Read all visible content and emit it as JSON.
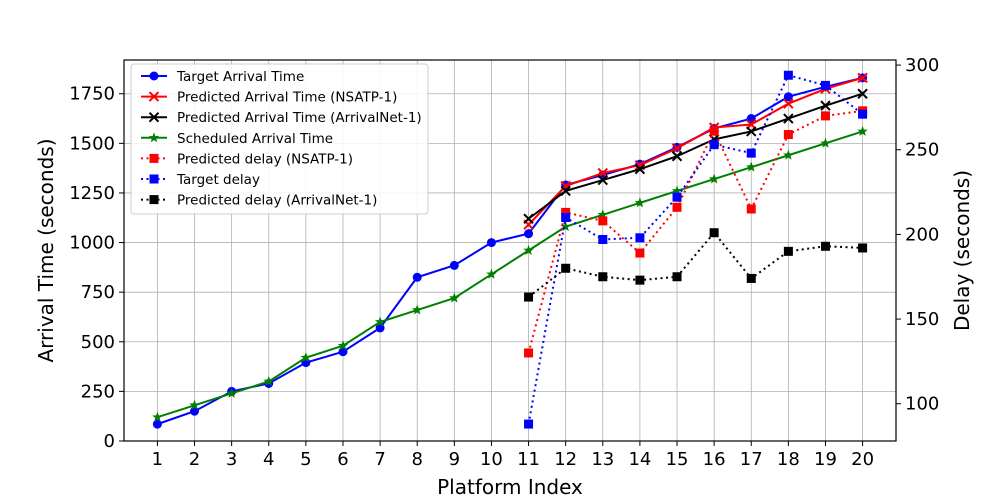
{
  "chart_data": {
    "type": "line",
    "title": "",
    "xlabel": "Platform Index",
    "ylabel_left": "Arrival Time (seconds)",
    "ylabel_right": "Delay (seconds)",
    "x": [
      1,
      2,
      3,
      4,
      5,
      6,
      7,
      8,
      9,
      10,
      11,
      12,
      13,
      14,
      15,
      16,
      17,
      18,
      19,
      20
    ],
    "xtick_labels": [
      "1",
      "2",
      "3",
      "4",
      "5",
      "6",
      "7",
      "8",
      "9",
      "10",
      "11",
      "12",
      "13",
      "14",
      "15",
      "16",
      "17",
      "18",
      "19",
      "20"
    ],
    "ylim_left": [
      0,
      1920
    ],
    "yticks_left": [
      0,
      250,
      500,
      750,
      1000,
      1250,
      1500,
      1750
    ],
    "yticks_left_labels": [
      "0",
      "250",
      "500",
      "750",
      "1000",
      "1250",
      "1500",
      "1750"
    ],
    "ylim_right": [
      78,
      303
    ],
    "yticks_right": [
      100,
      150,
      200,
      250,
      300
    ],
    "yticks_right_labels": [
      "100",
      "150",
      "200",
      "250",
      "300"
    ],
    "grid": true,
    "legend_position": "upper-left",
    "series": [
      {
        "name": "Target Arrival Time",
        "axis": "left",
        "color": "#0000ff",
        "style": "solid",
        "marker": "circle",
        "x": [
          1,
          2,
          3,
          4,
          5,
          6,
          7,
          8,
          9,
          10,
          11,
          12,
          13,
          14,
          15,
          16,
          17,
          18,
          19,
          20
        ],
        "values": [
          85,
          150,
          250,
          290,
          395,
          450,
          570,
          825,
          885,
          1000,
          1045,
          1290,
          1340,
          1395,
          1480,
          1575,
          1625,
          1735,
          1785,
          1830
        ]
      },
      {
        "name": "Predicted Arrival Time (NSATP-1)",
        "axis": "left",
        "color": "#ff0000",
        "style": "solid",
        "marker": "x",
        "x": [
          11,
          12,
          13,
          14,
          15,
          16,
          17,
          18,
          19,
          20
        ],
        "values": [
          1090,
          1285,
          1350,
          1390,
          1475,
          1580,
          1595,
          1700,
          1775,
          1830
        ]
      },
      {
        "name": "Predicted Arrival Time (ArrivalNet-1)",
        "axis": "left",
        "color": "#000000",
        "style": "solid",
        "marker": "x",
        "x": [
          11,
          12,
          13,
          14,
          15,
          16,
          17,
          18,
          19,
          20
        ],
        "values": [
          1120,
          1260,
          1315,
          1370,
          1435,
          1520,
          1560,
          1625,
          1690,
          1750
        ]
      },
      {
        "name": "Scheduled Arrival Time",
        "axis": "left",
        "color": "#008000",
        "style": "solid",
        "marker": "star",
        "x": [
          1,
          2,
          3,
          4,
          5,
          6,
          7,
          8,
          9,
          10,
          11,
          12,
          13,
          14,
          15,
          16,
          17,
          18,
          19,
          20
        ],
        "values": [
          120,
          180,
          240,
          300,
          420,
          480,
          600,
          660,
          720,
          840,
          960,
          1080,
          1140,
          1200,
          1260,
          1320,
          1380,
          1440,
          1500,
          1560
        ]
      },
      {
        "name": "Predicted delay (NSATP-1)",
        "axis": "right",
        "color": "#ff0000",
        "style": "dotted",
        "marker": "square",
        "x": [
          11,
          12,
          13,
          14,
          15,
          16,
          17,
          18,
          19,
          20
        ],
        "values": [
          130,
          213,
          208,
          189,
          216,
          261,
          215,
          259,
          270,
          273
        ]
      },
      {
        "name": "Target delay",
        "axis": "right",
        "color": "#0000ff",
        "style": "dotted",
        "marker": "square",
        "x": [
          11,
          12,
          13,
          14,
          15,
          16,
          17,
          18,
          19,
          20
        ],
        "values": [
          88,
          210,
          197,
          198,
          222,
          253,
          248,
          294,
          288,
          271
        ]
      },
      {
        "name": "Predicted delay (ArrivalNet-1)",
        "axis": "right",
        "color": "#000000",
        "style": "dotted",
        "marker": "square",
        "x": [
          11,
          12,
          13,
          14,
          15,
          16,
          17,
          18,
          19,
          20
        ],
        "values": [
          163,
          180,
          175,
          173,
          175,
          201,
          174,
          190,
          193,
          192
        ]
      }
    ]
  }
}
